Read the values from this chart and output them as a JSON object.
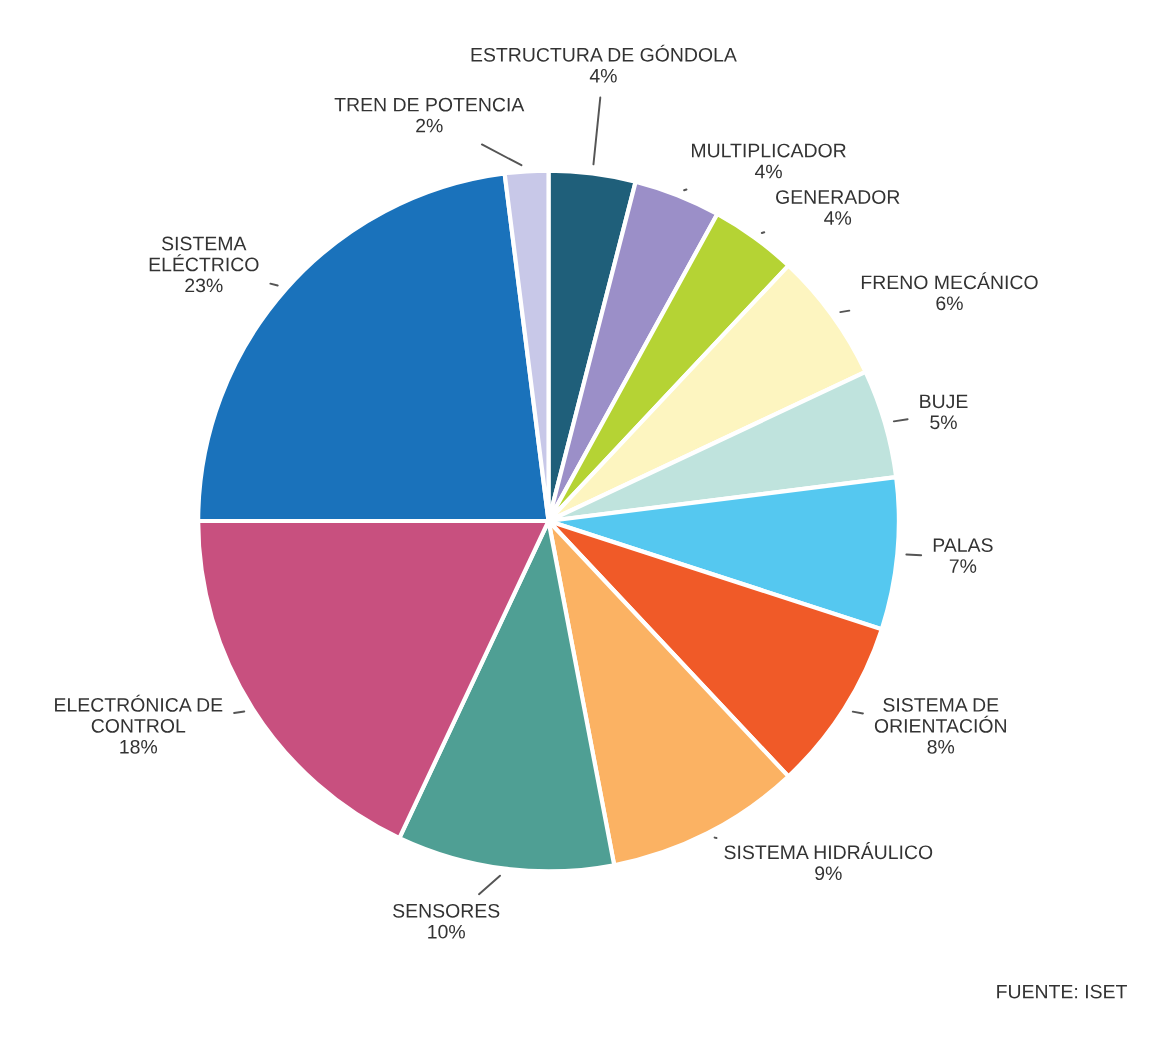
{
  "chart_data": {
    "type": "pie",
    "categories": [
      "ESTRUCTURA DE GÓNDOLA",
      "MULTIPLICADOR",
      "GENERADOR",
      "FRENO MECÁNICO",
      "BUJE",
      "PALAS",
      "SISTEMA DE\nORIENTACIÓN",
      "SISTEMA HIDRÁULICO",
      "SENSORES",
      "ELECTRÓNICA DE\nCONTROL",
      "SISTEMA\nELÉCTRICO",
      "TREN DE POTENCIA"
    ],
    "values": [
      4,
      4,
      4,
      6,
      5,
      7,
      8,
      9,
      10,
      18,
      23,
      2
    ],
    "value_labels": [
      "4%",
      "4%",
      "4%",
      "6%",
      "5%",
      "7%",
      "8%",
      "9%",
      "10%",
      "18%",
      "23%",
      "2%"
    ],
    "colors": [
      "#1f5f7a",
      "#9b8fc8",
      "#b5d334",
      "#fdf5c0",
      "#bfe3dd",
      "#55c8f0",
      "#f05a28",
      "#fbb263",
      "#4f9f94",
      "#c8507f",
      "#1a72bb",
      "#c8c8e8"
    ],
    "annotations": [
      "FUENTE: ISET"
    ]
  }
}
